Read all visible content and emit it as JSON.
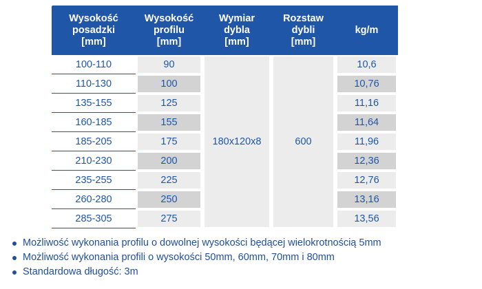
{
  "table": {
    "headers": [
      "Wysokość\nposadzki\n[mm]",
      "Wysokość\nprofilu\n[mm]",
      "Wymiar\ndybla\n[mm]",
      "Rozstaw\ndybli\n[mm]",
      "kg/m"
    ],
    "rows": [
      {
        "floor": "100-110",
        "profile": "90",
        "kg": "10,6"
      },
      {
        "floor": "110-130",
        "profile": "100",
        "kg": "10,76"
      },
      {
        "floor": "135-155",
        "profile": "125",
        "kg": "11,16"
      },
      {
        "floor": "160-185",
        "profile": "155",
        "kg": "11,64"
      },
      {
        "floor": "185-205",
        "profile": "175",
        "kg": "11,96"
      },
      {
        "floor": "210-230",
        "profile": "200",
        "kg": "12,36"
      },
      {
        "floor": "235-255",
        "profile": "225",
        "kg": "12,76"
      },
      {
        "floor": "260-280",
        "profile": "250",
        "kg": "13,16"
      },
      {
        "floor": "285-305",
        "profile": "275",
        "kg": "13,56"
      }
    ],
    "dowel_size": "180x120x8",
    "dowel_spacing": "600"
  },
  "notes": [
    "Możliwość wykonania profilu o dowolnej wysokości będącej wielokrotnością 5mm",
    "Możliwość wykonania profili o wysokości 50mm, 60mm, 70mm i 80mm",
    "Standardowa długość: 3m"
  ],
  "colors": {
    "header_bg": "#1f56a8",
    "text": "#1f56a8",
    "light_cell": "#ececec",
    "dark_cell": "#d3d3d3"
  }
}
